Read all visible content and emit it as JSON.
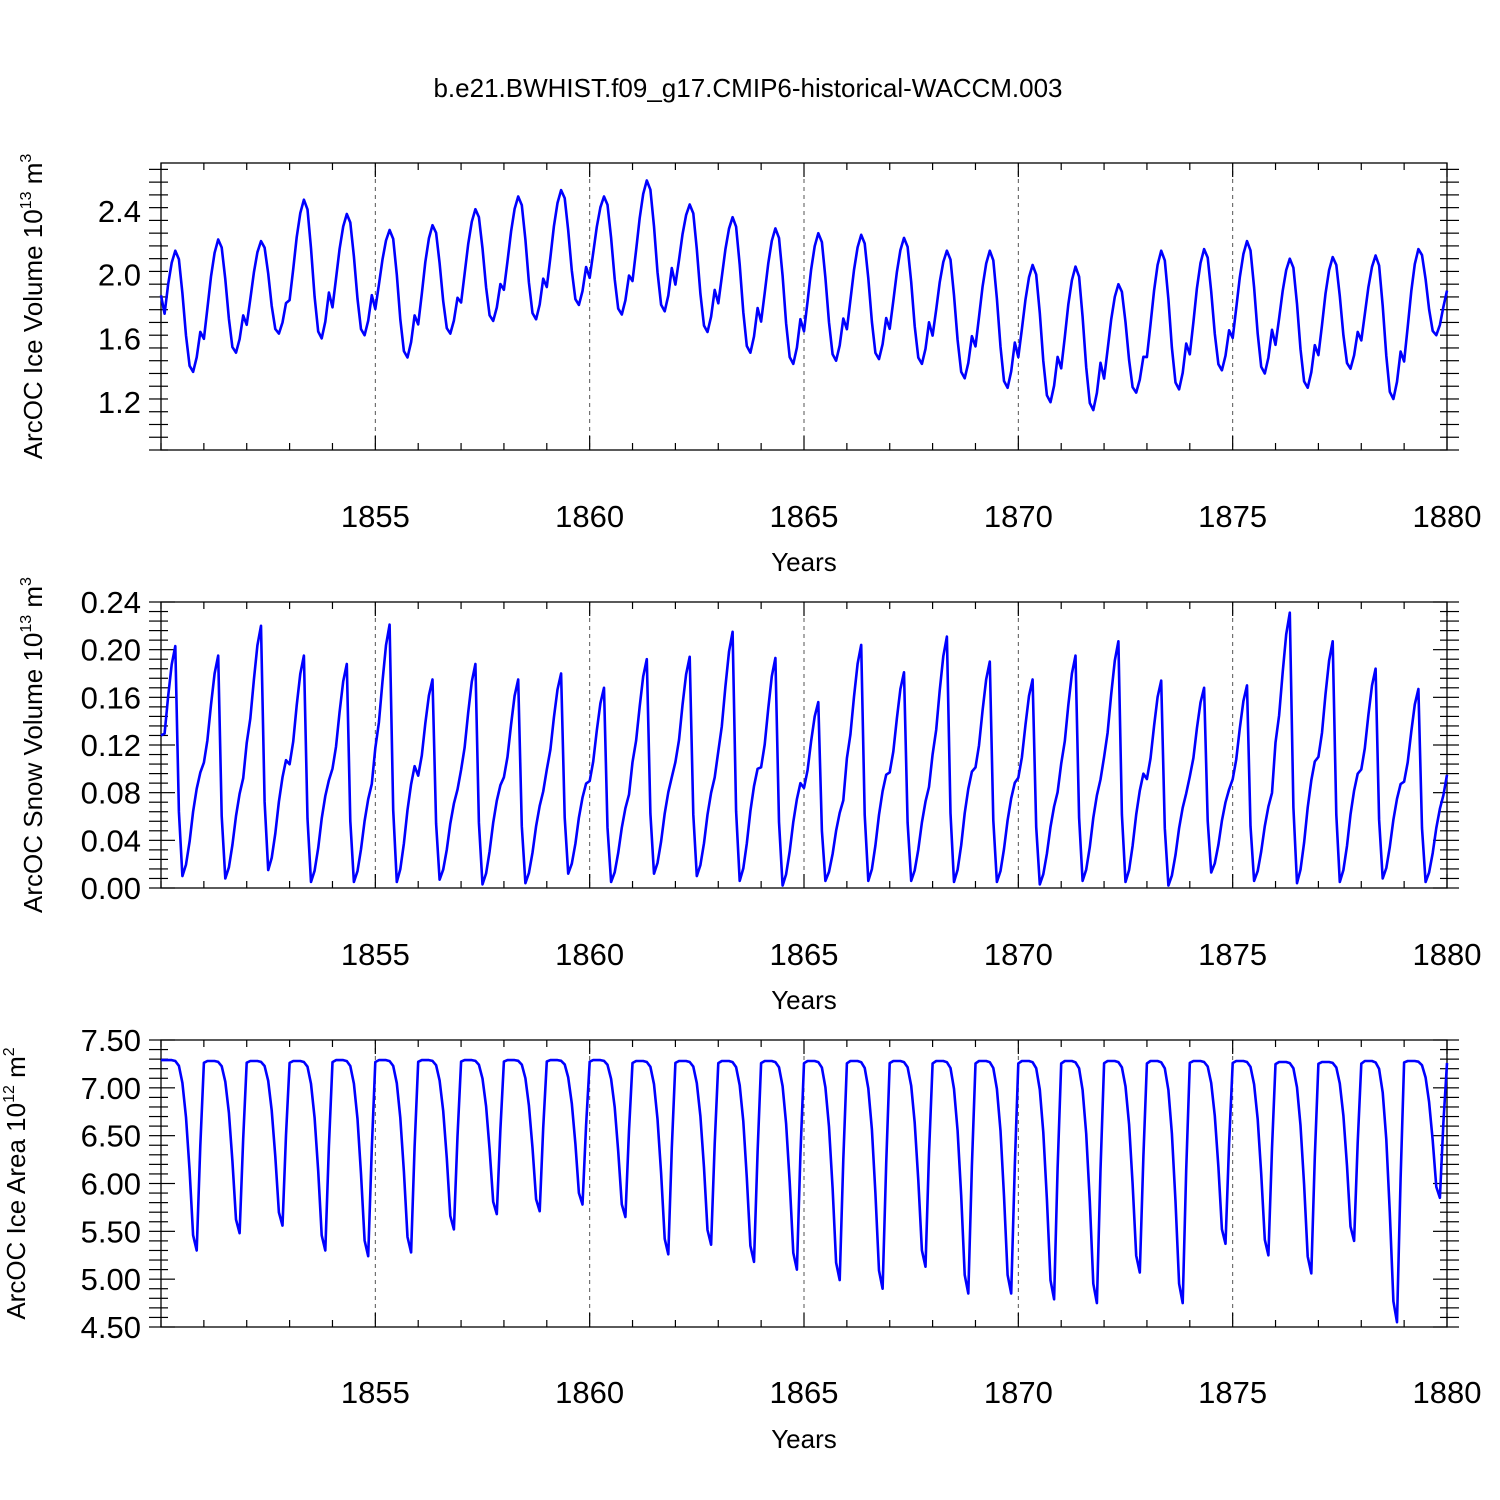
{
  "figure": {
    "title": "b.e21.BWHIST.f09_g17.CMIP6-historical-WACCM.003"
  },
  "colors": {
    "series": "#0000ff",
    "grid": "#555555",
    "axis": "#000000"
  },
  "chart_data": [
    {
      "type": "line",
      "id": "ice-volume",
      "ylabel": "ArcOC Ice Volume 10",
      "ylabel_exp": "13",
      "ylabel_unit": " m",
      "ylabel_unit_exp": "3",
      "xlabel": "Years",
      "xlim": [
        1850.0,
        1880.0
      ],
      "ylim": [
        0.9,
        2.7
      ],
      "xticks": [
        1855,
        1860,
        1865,
        1870,
        1875,
        1880
      ],
      "xtick_labels": [
        "1855",
        "1860",
        "1865",
        "1870",
        "1875",
        "1880"
      ],
      "yticks": [
        1.2,
        1.6,
        2.0,
        2.4
      ],
      "ytick_labels": [
        "1.2",
        "1.6",
        "2.0",
        "2.4"
      ],
      "grid_x": true,
      "x_start": 1850.0,
      "x_step": 0.0833333,
      "annual": {
        "max": [
          2.15,
          2.22,
          2.21,
          2.47,
          2.38,
          2.28,
          2.31,
          2.41,
          2.49,
          2.53,
          2.49,
          2.59,
          2.44,
          2.36,
          2.29,
          2.26,
          2.25,
          2.23,
          2.15,
          2.15,
          2.06,
          2.05,
          1.94,
          2.15,
          2.16,
          2.21,
          2.1,
          2.11,
          2.12,
          2.16
        ],
        "min": [
          1.39,
          1.51,
          1.63,
          1.6,
          1.62,
          1.48,
          1.63,
          1.71,
          1.72,
          1.81,
          1.75,
          1.77,
          1.64,
          1.51,
          1.44,
          1.46,
          1.47,
          1.44,
          1.35,
          1.29,
          1.2,
          1.15,
          1.26,
          1.28,
          1.4,
          1.38,
          1.29,
          1.41,
          1.22,
          1.62
        ]
      },
      "start_value": 1.87,
      "end_value": 1.9
    },
    {
      "type": "line",
      "id": "snow-volume",
      "ylabel": "ArcOC Snow Volume 10",
      "ylabel_exp": "13",
      "ylabel_unit": " m",
      "ylabel_unit_exp": "3",
      "xlabel": "Years",
      "xlim": [
        1850.0,
        1880.0
      ],
      "ylim": [
        0.0,
        0.24
      ],
      "xticks": [
        1855,
        1860,
        1865,
        1870,
        1875,
        1880
      ],
      "xtick_labels": [
        "1855",
        "1860",
        "1865",
        "1870",
        "1875",
        "1880"
      ],
      "yticks": [
        0.0,
        0.04,
        0.08,
        0.12,
        0.16,
        0.2,
        0.24
      ],
      "ytick_labels": [
        "0.00",
        "0.04",
        "0.08",
        "0.12",
        "0.16",
        "0.20",
        "0.24"
      ],
      "grid_x": true,
      "x_start": 1850.0,
      "x_step": 0.0833333,
      "annual": {
        "max": [
          0.203,
          0.195,
          0.22,
          0.195,
          0.188,
          0.221,
          0.175,
          0.188,
          0.175,
          0.18,
          0.168,
          0.192,
          0.194,
          0.215,
          0.193,
          0.156,
          0.204,
          0.181,
          0.211,
          0.19,
          0.175,
          0.195,
          0.207,
          0.174,
          0.168,
          0.17,
          0.231,
          0.207,
          0.184,
          0.167
        ],
        "min": [
          0.01,
          0.008,
          0.015,
          0.005,
          0.005,
          0.005,
          0.007,
          0.003,
          0.004,
          0.012,
          0.005,
          0.012,
          0.01,
          0.006,
          0.002,
          0.006,
          0.006,
          0.006,
          0.005,
          0.005,
          0.003,
          0.006,
          0.005,
          0.002,
          0.013,
          0.006,
          0.004,
          0.005,
          0.008,
          0.005
        ]
      },
      "start_value": 0.128,
      "end_value": 0.095
    },
    {
      "type": "line",
      "id": "ice-area",
      "ylabel": "ArcOC Ice Area 10",
      "ylabel_exp": "12",
      "ylabel_unit": " m",
      "ylabel_unit_exp": "2",
      "xlabel": "Years",
      "xlim": [
        1850.0,
        1880.0
      ],
      "ylim": [
        4.5,
        7.5
      ],
      "xticks": [
        1855,
        1860,
        1865,
        1870,
        1875,
        1880
      ],
      "xtick_labels": [
        "1855",
        "1860",
        "1865",
        "1870",
        "1875",
        "1880"
      ],
      "yticks": [
        4.5,
        5.0,
        5.5,
        6.0,
        6.5,
        7.0,
        7.5
      ],
      "ytick_labels": [
        "4.50",
        "5.00",
        "5.50",
        "6.00",
        "6.50",
        "7.00",
        "7.50"
      ],
      "grid_x": true,
      "x_start": 1850.0,
      "x_step": 0.0833333,
      "annual": {
        "max": [
          7.29,
          7.28,
          7.28,
          7.28,
          7.29,
          7.29,
          7.29,
          7.29,
          7.29,
          7.29,
          7.29,
          7.28,
          7.28,
          7.28,
          7.28,
          7.28,
          7.28,
          7.28,
          7.28,
          7.28,
          7.28,
          7.28,
          7.28,
          7.28,
          7.28,
          7.28,
          7.27,
          7.27,
          7.28,
          7.28
        ],
        "min": [
          5.3,
          5.48,
          5.56,
          5.3,
          5.24,
          5.28,
          5.52,
          5.68,
          5.71,
          5.78,
          5.65,
          5.26,
          5.36,
          5.18,
          5.1,
          4.99,
          4.9,
          5.13,
          4.85,
          4.85,
          4.79,
          4.75,
          5.07,
          4.75,
          5.37,
          5.25,
          5.06,
          5.4,
          4.55,
          5.85
        ]
      },
      "start_value": 7.29,
      "end_value": 7.26
    }
  ]
}
